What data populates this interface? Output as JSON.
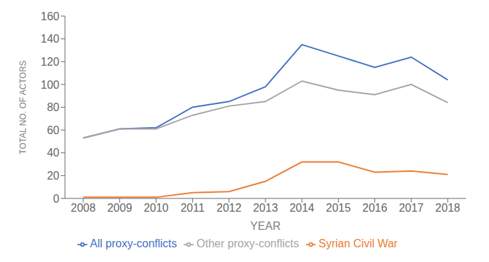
{
  "chart_data": {
    "type": "line",
    "x": [
      2008,
      2009,
      2010,
      2011,
      2012,
      2013,
      2014,
      2015,
      2016,
      2017,
      2018
    ],
    "series": [
      {
        "name": "All proxy-conflicts",
        "color": "#4472C4",
        "values": [
          53,
          61,
          62,
          80,
          85,
          98,
          135,
          125,
          115,
          124,
          104
        ]
      },
      {
        "name": "Syrian Civil War",
        "color": "#ED7D31",
        "values": [
          1,
          1,
          1,
          5,
          6,
          15,
          32,
          32,
          23,
          24,
          21
        ]
      },
      {
        "name": "Other proxy-conflicts",
        "color": "#A5A5A5",
        "values": [
          53,
          61,
          61,
          73,
          81,
          85,
          103,
          95,
          91,
          100,
          84
        ]
      }
    ],
    "xlabel": "YEAR",
    "ylabel": "TOTAL NO. OF ACTORS",
    "xlim": [
      2007.5,
      2018.5
    ],
    "xticks": [
      2008,
      2009,
      2010,
      2011,
      2012,
      2013,
      2014,
      2015,
      2016,
      2017,
      2018
    ],
    "ylim": [
      0,
      160
    ],
    "yticks": [
      0,
      20,
      40,
      60,
      80,
      100,
      120,
      140,
      160
    ],
    "grid": false,
    "legend": "bottom"
  }
}
